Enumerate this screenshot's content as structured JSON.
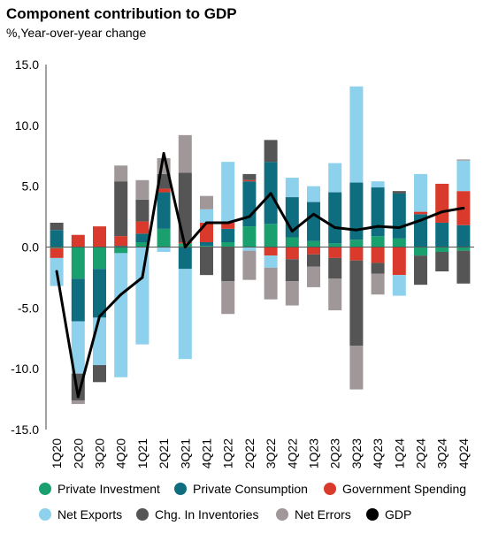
{
  "title": "Component contribution to GDP",
  "subtitle": "%,Year-over-year change",
  "chart_data": {
    "type": "bar",
    "stacked": true,
    "title": "Component contribution to GDP",
    "subtitle": "%,Year-over-year change",
    "categories": [
      "1Q20",
      "2Q20",
      "3Q20",
      "4Q20",
      "1Q21",
      "2Q21",
      "3Q21",
      "4Q21",
      "1Q22",
      "2Q22",
      "3Q22",
      "4Q22",
      "1Q23",
      "2Q23",
      "3Q23",
      "4Q23",
      "1Q24",
      "2Q24",
      "3Q24",
      "4Q24"
    ],
    "ylim": [
      -15,
      15
    ],
    "yticks": [
      "15.0",
      "10.0",
      "5.0",
      "0.0",
      "-5.0",
      "-10.0",
      "-15.0"
    ],
    "ytick_values": [
      15,
      10,
      5,
      0,
      -5,
      -10,
      -15
    ],
    "series": [
      {
        "name": "Private Investment",
        "color": "#1aa06e",
        "values": [
          -0.1,
          -2.6,
          -1.8,
          -0.5,
          0.4,
          1.5,
          0.3,
          0.1,
          0.4,
          1.7,
          1.9,
          0.8,
          0.5,
          0.3,
          0.6,
          0.9,
          0.7,
          -0.7,
          -0.4,
          -0.3
        ]
      },
      {
        "name": "Private Consumption",
        "color": "#0e6e80",
        "values": [
          1.4,
          -3.5,
          -4.0,
          0.1,
          0.7,
          3.0,
          -1.8,
          0.3,
          1.1,
          3.7,
          5.1,
          3.3,
          3.2,
          4.2,
          4.7,
          4.0,
          3.7,
          2.7,
          2.0,
          1.8
        ]
      },
      {
        "name": "Government Spending",
        "color": "#d93a2b",
        "values": [
          -0.8,
          1.0,
          1.7,
          0.8,
          1.0,
          0.3,
          0.1,
          1.6,
          0.5,
          0.1,
          -0.7,
          -1.0,
          -0.6,
          -0.9,
          -1.1,
          -1.3,
          -2.3,
          0.2,
          3.2,
          2.8
        ]
      },
      {
        "name": "Net Exports",
        "color": "#8dd1ed",
        "values": [
          -2.3,
          -4.3,
          -3.9,
          -10.2,
          -8.0,
          -0.4,
          -7.4,
          1.1,
          5.0,
          -0.3,
          -1.0,
          1.6,
          1.3,
          2.4,
          7.9,
          0.5,
          -1.7,
          3.1,
          0.0,
          2.5
        ]
      },
      {
        "name": "Chg. In Inventories",
        "color": "#555555",
        "values": [
          0.6,
          -2.2,
          -1.4,
          4.5,
          1.8,
          1.2,
          5.7,
          -2.3,
          -2.8,
          0.5,
          1.8,
          -1.8,
          -1.0,
          -1.7,
          -7.0,
          -0.9,
          0.2,
          -2.4,
          -1.6,
          -2.7
        ]
      },
      {
        "name": "Net Errors",
        "color": "#a09898",
        "values": [
          0.0,
          -0.3,
          0.0,
          1.3,
          1.6,
          1.3,
          3.1,
          1.1,
          -2.7,
          -2.4,
          -2.6,
          -2.0,
          -1.7,
          -2.6,
          -3.6,
          -1.7,
          0.0,
          0.0,
          0.0,
          0.1
        ]
      }
    ],
    "gdp": {
      "name": "GDP",
      "color": "#000000",
      "values": [
        -2.0,
        -12.3,
        -5.7,
        -3.9,
        -2.5,
        7.7,
        0.0,
        2.0,
        2.0,
        2.5,
        4.4,
        1.3,
        2.7,
        1.6,
        1.4,
        1.7,
        1.6,
        2.2,
        2.9,
        3.2
      ]
    },
    "legend": [
      {
        "label": "Private Investment",
        "color": "#1aa06e"
      },
      {
        "label": "Private Consumption",
        "color": "#0e6e80"
      },
      {
        "label": "Government Spending",
        "color": "#d93a2b"
      },
      {
        "label": "Net Exports",
        "color": "#8dd1ed"
      },
      {
        "label": "Chg. In Inventories",
        "color": "#555555"
      },
      {
        "label": "Net Errors",
        "color": "#a09898"
      },
      {
        "label": "GDP",
        "color": "#000000"
      }
    ],
    "legend_placement": "bottom",
    "grid": false
  }
}
